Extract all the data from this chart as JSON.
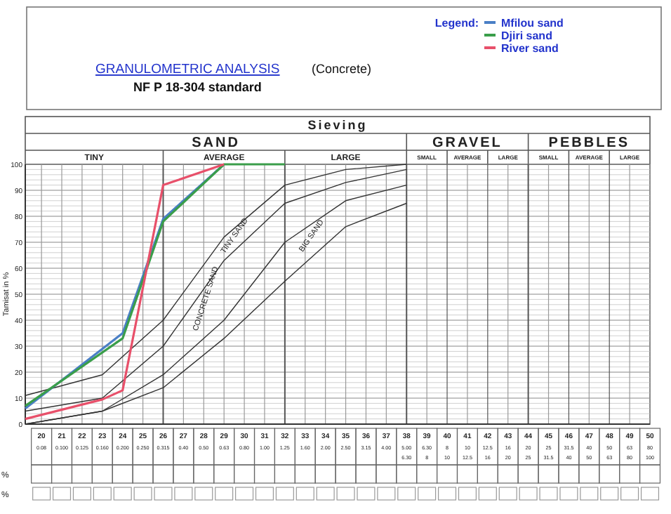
{
  "chart_data": {
    "type": "line",
    "title": "GRANULOMETRIC ANALYSIS",
    "subtitle": "NF P 18-304 standard",
    "ylabel": "Tamisat in %",
    "legend_title": "Legend:",
    "legend": "top right",
    "grid": true,
    "line_style": "solid",
    "marker": "none",
    "xlim": [
      19.2,
      50
    ],
    "ylim": [
      0,
      100
    ],
    "yticks": [
      0,
      10,
      20,
      30,
      40,
      50,
      60,
      70,
      80,
      90,
      100
    ],
    "xticks": [
      20,
      21,
      22,
      23,
      24,
      25,
      26,
      27,
      28,
      29,
      30,
      31,
      32,
      33,
      34,
      35,
      36,
      37,
      38,
      39,
      40,
      41,
      42,
      43,
      44,
      45,
      46,
      47,
      48,
      49,
      50
    ],
    "series": [
      {
        "color": "#333333",
        "x": [
          19.2,
          23,
          26,
          29,
          32,
          35,
          38
        ],
        "values": [
          11,
          19,
          40,
          72,
          92,
          98,
          100
        ]
      },
      {
        "color": "#333333",
        "x": [
          19.2,
          23,
          26,
          29,
          32,
          35,
          38
        ],
        "values": [
          5,
          10,
          30,
          63,
          85,
          93,
          98
        ]
      },
      {
        "color": "#333333",
        "x": [
          19.2,
          23,
          26,
          29,
          32,
          35,
          38
        ],
        "values": [
          0,
          5,
          19,
          40,
          70,
          86,
          92
        ]
      },
      {
        "color": "#333333",
        "x": [
          19.2,
          23,
          26,
          29,
          32,
          35,
          38
        ],
        "values": [
          0,
          5,
          14,
          33,
          55,
          76,
          85
        ]
      },
      {
        "name": "Mfilou sand",
        "color": "#4a7fc6",
        "x": [
          19.2,
          24,
          26,
          29
        ],
        "values": [
          6,
          35,
          79,
          100
        ]
      },
      {
        "name": "Djiri sand",
        "color": "#3a9e4a",
        "x": [
          19.2,
          24,
          26,
          29,
          32
        ],
        "values": [
          7,
          33,
          78,
          100,
          100
        ]
      },
      {
        "name": "River sand",
        "color": "#e8506a",
        "x": [
          19.2,
          23,
          24,
          26,
          29
        ],
        "values": [
          2,
          9.5,
          13,
          92,
          100
        ]
      }
    ],
    "annotations": [
      "(Concrete)",
      "Sieving",
      "SAND",
      "GRAVEL",
      "PEBBLES",
      "TINY",
      "AVERAGE",
      "LARGE",
      "SMALL",
      "AVERAGE",
      "LARGE",
      "SMALL",
      "AVERAGE",
      "LARGE",
      "%",
      "%",
      "CONCRETE SAND",
      "TINY SAND",
      "BIG SAND",
      "0.08",
      "0.100",
      "0.125",
      "0.160",
      "0.200",
      "0.250",
      "0.315",
      "0.40",
      "0.50",
      "0.63",
      "0.80",
      "1.00",
      "1.25",
      "1.60",
      "2.00",
      "2.50",
      "3.15",
      "4.00",
      "5.00",
      "6.30",
      "8",
      "10",
      "12.5",
      "16",
      "20",
      "25",
      "31.5",
      "40",
      "50",
      "63",
      "80",
      "6.30",
      "8",
      "10",
      "12.5",
      "16",
      "20",
      "25",
      "31.5",
      "40",
      "50",
      "63",
      "80",
      "100"
    ]
  }
}
